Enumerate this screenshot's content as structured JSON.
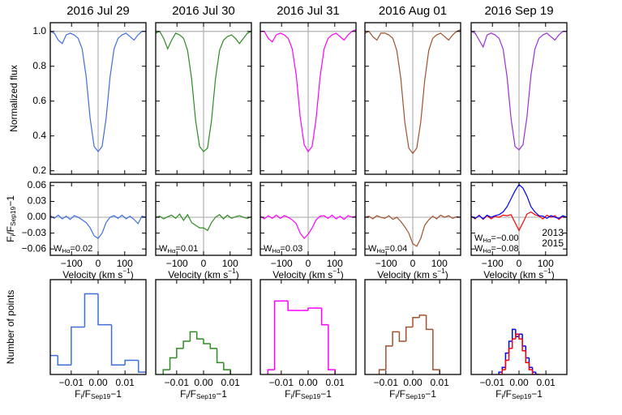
{
  "chart_data": {
    "type": "multi-panel",
    "titles": [
      "2016 Jul 29",
      "2016 Jul 30",
      "2016 Jul 31",
      "2016 Aug 01",
      "2016 Sep 19"
    ],
    "spectra": {
      "type": "line",
      "ylabel": [
        {
          "text": "Normalized flux"
        }
      ],
      "x": [
        -180,
        -165,
        -150,
        -135,
        -120,
        -105,
        -90,
        -75,
        -60,
        -45,
        -30,
        -15,
        0,
        15,
        30,
        45,
        60,
        75,
        90,
        105,
        120,
        135,
        150,
        165,
        180
      ],
      "xlim": [
        -180,
        180
      ],
      "xticks": [
        -100,
        0,
        100
      ],
      "ylim": [
        0.18,
        1.05
      ],
      "yticks": [
        0.2,
        0.4,
        0.6,
        0.8,
        {
          "value": 1,
          "label": "1.0"
        }
      ],
      "panels": [
        {
          "series": [
            {
              "color": "#3f6fdc",
              "values": [
                1.0,
                0.99,
                0.95,
                0.93,
                0.98,
                0.99,
                0.98,
                0.96,
                0.9,
                0.74,
                0.5,
                0.34,
                0.31,
                0.34,
                0.5,
                0.74,
                0.9,
                0.96,
                0.98,
                0.99,
                0.97,
                0.95,
                0.98,
                1.0,
                1.0
              ]
            }
          ]
        },
        {
          "series": [
            {
              "color": "#2e8b22",
              "values": [
                0.99,
                1.0,
                0.96,
                0.9,
                0.95,
                0.99,
                0.98,
                0.96,
                0.89,
                0.73,
                0.49,
                0.34,
                0.31,
                0.33,
                0.49,
                0.73,
                0.89,
                0.95,
                0.97,
                0.98,
                0.96,
                0.93,
                0.96,
                0.99,
                1.0
              ]
            }
          ]
        },
        {
          "series": [
            {
              "color": "#ff00ff",
              "values": [
                1.0,
                1.0,
                0.96,
                0.94,
                0.98,
                0.99,
                0.98,
                0.96,
                0.9,
                0.75,
                0.51,
                0.35,
                0.31,
                0.34,
                0.5,
                0.74,
                0.9,
                0.96,
                0.98,
                0.99,
                0.97,
                0.95,
                0.98,
                1.0,
                1.01
              ]
            }
          ]
        },
        {
          "series": [
            {
              "color": "#a0522d",
              "values": [
                0.99,
                1.0,
                0.97,
                0.95,
                0.99,
                0.99,
                0.98,
                0.96,
                0.89,
                0.73,
                0.48,
                0.33,
                0.3,
                0.33,
                0.48,
                0.72,
                0.89,
                0.96,
                0.98,
                0.99,
                0.97,
                0.95,
                0.98,
                1.0,
                1.01
              ]
            }
          ]
        },
        {
          "series": [
            {
              "color": "#9b30d8",
              "values": [
                1.0,
                0.99,
                0.95,
                0.91,
                0.98,
                0.99,
                0.98,
                0.96,
                0.9,
                0.74,
                0.5,
                0.34,
                0.32,
                0.35,
                0.51,
                0.75,
                0.9,
                0.96,
                0.98,
                0.99,
                0.97,
                0.95,
                0.98,
                1.0,
                1.0
              ]
            }
          ]
        }
      ]
    },
    "residuals": {
      "type": "line",
      "ylabel": [
        {
          "text": "F"
        },
        {
          "text": "i",
          "shift": "sub"
        },
        {
          "text": "/F"
        },
        {
          "text": "Sep19",
          "shift": "sub"
        },
        {
          "text": "−1"
        }
      ],
      "xlabel": [
        {
          "text": "Velocity (km s"
        },
        {
          "text": "−1",
          "shift": "super"
        },
        {
          "text": ")"
        }
      ],
      "x": [
        -180,
        -165,
        -150,
        -135,
        -120,
        -105,
        -90,
        -75,
        -60,
        -45,
        -30,
        -15,
        0,
        15,
        30,
        45,
        60,
        75,
        90,
        105,
        120,
        135,
        150,
        165,
        180
      ],
      "xlim": [
        -180,
        180
      ],
      "xticks": [
        {
          "value": -100,
          "label": "−100"
        },
        0,
        100
      ],
      "ylim": [
        -0.072,
        0.066
      ],
      "yticks": [
        {
          "value": -0.06,
          "label": "−0.06"
        },
        {
          "value": -0.03,
          "label": "−0.03"
        },
        {
          "value": 0,
          "label": "0.00"
        },
        0.03,
        0.06
      ],
      "panels": [
        {
          "series": [
            {
              "color": "#3f6fdc",
              "ew": [
                {
                  "text": "W"
                },
                {
                  "text": "Hα",
                  "shift": "sub"
                },
                {
                  "text": "=0.02"
                }
              ],
              "values": [
                0.003,
                -0.002,
                0.004,
                -0.003,
                0.002,
                -0.004,
                0.003,
                0.0,
                -0.005,
                -0.01,
                -0.02,
                -0.035,
                -0.04,
                -0.03,
                -0.01,
                0.0,
                0.003,
                -0.002,
                0.004,
                -0.003,
                0.002,
                -0.004,
                -0.012,
                0.002,
                0.0
              ]
            }
          ]
        },
        {
          "series": [
            {
              "color": "#2e8b22",
              "ew": [
                {
                  "text": "W"
                },
                {
                  "text": "Hα",
                  "shift": "sub"
                },
                {
                  "text": "=0.01"
                }
              ],
              "values": [
                0.0,
                0.002,
                -0.003,
                0.001,
                0.004,
                -0.002,
                0.006,
                -0.006,
                0.005,
                -0.01,
                -0.015,
                -0.02,
                -0.02,
                -0.025,
                -0.01,
                0.0,
                0.005,
                -0.003,
                0.004,
                -0.002,
                0.001,
                0.003,
                0.0,
                -0.002,
                0.001
              ]
            }
          ]
        },
        {
          "series": [
            {
              "color": "#ff00ff",
              "ew": [
                {
                  "text": "W"
                },
                {
                  "text": "Hα",
                  "shift": "sub"
                },
                {
                  "text": "=0.03"
                }
              ],
              "values": [
                0.002,
                -0.003,
                0.003,
                -0.002,
                0.004,
                -0.002,
                0.003,
                0.0,
                -0.005,
                -0.012,
                -0.03,
                -0.04,
                -0.032,
                -0.02,
                -0.005,
                0.002,
                0.003,
                -0.002,
                0.004,
                -0.003,
                0.002,
                -0.004,
                0.003,
                0.0,
                0.002
              ]
            }
          ]
        },
        {
          "series": [
            {
              "color": "#a0522d",
              "ew": [
                {
                  "text": "W"
                },
                {
                  "text": "Hα",
                  "shift": "sub"
                },
                {
                  "text": "=0.04"
                }
              ],
              "values": [
                0.0,
                0.002,
                -0.003,
                0.003,
                0.0,
                -0.002,
                0.003,
                -0.004,
                0.0,
                -0.008,
                -0.018,
                -0.03,
                -0.05,
                -0.055,
                -0.04,
                -0.015,
                -0.005,
                0.002,
                -0.003,
                0.004,
                0.0,
                0.003,
                -0.002,
                0.001,
                0.0
              ]
            }
          ]
        },
        {
          "series": [
            {
              "name": "2013",
              "color": "#ff0000",
              "ew": [
                {
                  "text": "W"
                },
                {
                  "text": "Hα",
                  "shift": "sub"
                },
                {
                  "text": "=−0.00"
                }
              ],
              "values": [
                0.002,
                -0.003,
                0.004,
                -0.004,
                0.003,
                -0.003,
                0.002,
                0.0,
                0.004,
                0.003,
                0.005,
                -0.01,
                -0.025,
                -0.01,
                0.006,
                0.01,
                0.005,
                0.002,
                -0.003,
                0.004,
                0.0,
                0.003,
                -0.004,
                0.002,
                0.0
              ]
            },
            {
              "name": "2015",
              "color": "#0000ff",
              "ew": [
                {
                  "text": "W"
                },
                {
                  "text": "Hα",
                  "shift": "sub"
                },
                {
                  "text": "=−0.08"
                }
              ],
              "values": [
                0.002,
                -0.002,
                0.003,
                -0.003,
                0.004,
                0.0,
                0.003,
                0.005,
                0.01,
                0.02,
                0.035,
                0.05,
                0.062,
                0.055,
                0.04,
                0.02,
                0.01,
                0.003,
                0.002,
                -0.002,
                0.003,
                0.0,
                -0.002,
                0.003,
                0.0
              ]
            }
          ]
        }
      ]
    },
    "histograms": {
      "type": "histogram",
      "ylabel": [
        {
          "text": "Number of points"
        }
      ],
      "xlabel": [
        {
          "text": "F"
        },
        {
          "text": "i",
          "shift": "sub"
        },
        {
          "text": "/F"
        },
        {
          "text": "Sep19",
          "shift": "sub"
        },
        {
          "text": "−1"
        }
      ],
      "xlim": [
        -0.0178,
        0.0178
      ],
      "xticks": [
        {
          "value": -0.01,
          "label": "−0.01"
        },
        {
          "value": 0,
          "label": "0.00"
        },
        0.01
      ],
      "ylim": [
        0,
        40
      ],
      "panels": [
        {
          "series": [
            {
              "color": "#3f6fdc",
              "bins": [
                -0.02,
                -0.015,
                -0.01,
                -0.005,
                0,
                0.005,
                0.01,
                0.015,
                0.02
              ],
              "values": [
                8,
                4,
                20,
                34,
                21,
                4,
                6,
                1
              ]
            }
          ]
        },
        {
          "series": [
            {
              "color": "#2e8b22",
              "bins": [
                -0.015,
                -0.0125,
                -0.01,
                -0.0075,
                -0.005,
                -0.0025,
                0,
                0.0025,
                0.005,
                0.0075,
                0.01
              ],
              "values": [
                2,
                7,
                11,
                14,
                18,
                15,
                13,
                11,
                5,
                2
              ]
            }
          ]
        },
        {
          "series": [
            {
              "color": "#ff00ff",
              "bins": [
                -0.015,
                -0.0125,
                -0.01,
                -0.0075,
                -0.005,
                -0.0025,
                0,
                0.0025,
                0.005,
                0.0075,
                0.01
              ],
              "values": [
                2,
                31,
                31,
                27,
                27,
                27,
                28,
                28,
                21,
                2
              ]
            }
          ]
        },
        {
          "series": [
            {
              "color": "#a0522d",
              "bins": [
                -0.0125,
                -0.01,
                -0.0075,
                -0.005,
                -0.0025,
                0,
                0.0025,
                0.005,
                0.0075,
                0.01
              ],
              "values": [
                2,
                12,
                18,
                14,
                20,
                24,
                25,
                19,
                2
              ]
            }
          ]
        },
        {
          "series": [
            {
              "color": "#0000ff",
              "bins": [
                -0.0075,
                -0.00625,
                -0.005,
                -0.00375,
                -0.0025,
                -0.00125,
                0,
                0.00125,
                0.0025,
                0.00375,
                0.005,
                0.00625,
                0.0075
              ],
              "values": [
                1,
                3,
                9,
                14,
                19,
                16,
                17,
                12,
                7,
                3,
                1,
                0
              ]
            },
            {
              "color": "#ff0000",
              "bins": [
                -0.0075,
                -0.00625,
                -0.005,
                -0.00375,
                -0.0025,
                -0.00125,
                0,
                0.00125,
                0.0025,
                0.00375,
                0.005,
                0.00625,
                0.0075
              ],
              "values": [
                0,
                2,
                6,
                11,
                15,
                17,
                15,
                10,
                5,
                2,
                0,
                0
              ]
            }
          ]
        }
      ]
    }
  }
}
